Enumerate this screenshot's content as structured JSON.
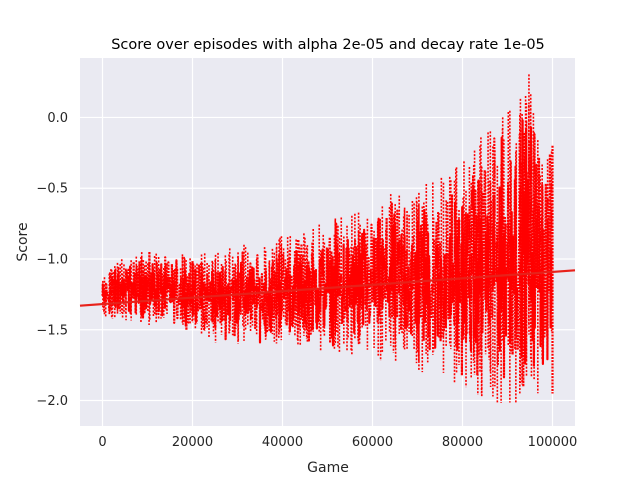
{
  "chart_data": {
    "type": "scatter",
    "title": "Score over episodes with alpha 2e-05 and decay rate 1e-05",
    "xlabel": "Game",
    "ylabel": "Score",
    "xlim": [
      -5000,
      105000
    ],
    "ylim": [
      -2.18,
      0.42
    ],
    "x_ticks": [
      0,
      20000,
      40000,
      60000,
      80000,
      100000
    ],
    "x_tick_labels": [
      "0",
      "20000",
      "40000",
      "60000",
      "80000",
      "100000"
    ],
    "y_ticks": [
      0.0,
      -0.5,
      -1.0,
      -1.5,
      -2.0
    ],
    "y_tick_labels": [
      "0.0",
      "−0.5",
      "−1.0",
      "−1.5",
      "−2.0"
    ],
    "grid": true,
    "style": "seaborn-darkgrid",
    "series": [
      {
        "color": "#ff0000",
        "marker": "dashed-points",
        "x_range": [
          0,
          100000
        ],
        "envelope": [
          {
            "x": 0,
            "low": -1.42,
            "high": -1.12
          },
          {
            "x": 5000,
            "low": -1.44,
            "high": -0.98
          },
          {
            "x": 10000,
            "low": -1.47,
            "high": -0.93
          },
          {
            "x": 15000,
            "low": -1.49,
            "high": -0.95
          },
          {
            "x": 20000,
            "low": -1.51,
            "high": -0.96
          },
          {
            "x": 25000,
            "low": -1.6,
            "high": -0.95
          },
          {
            "x": 30000,
            "low": -1.6,
            "high": -0.88
          },
          {
            "x": 35000,
            "low": -1.62,
            "high": -0.93
          },
          {
            "x": 40000,
            "low": -1.6,
            "high": -0.82
          },
          {
            "x": 45000,
            "low": -1.64,
            "high": -0.8
          },
          {
            "x": 50000,
            "low": -1.66,
            "high": -0.72
          },
          {
            "x": 55000,
            "low": -1.7,
            "high": -0.68
          },
          {
            "x": 60000,
            "low": -1.72,
            "high": -0.62
          },
          {
            "x": 65000,
            "low": -1.76,
            "high": -0.52
          },
          {
            "x": 70000,
            "low": -1.8,
            "high": -0.48
          },
          {
            "x": 75000,
            "low": -1.9,
            "high": -0.4
          },
          {
            "x": 80000,
            "low": -1.92,
            "high": -0.3
          },
          {
            "x": 85000,
            "low": -2.0,
            "high": -0.1
          },
          {
            "x": 90000,
            "low": -2.03,
            "high": 0.05
          },
          {
            "x": 95000,
            "low": -2.02,
            "high": 0.32
          },
          {
            "x": 100000,
            "low": -1.95,
            "high": -0.2
          }
        ]
      },
      {
        "type": "regression-line",
        "color": "#e8211a",
        "points": [
          {
            "x": -5000,
            "y": -1.33
          },
          {
            "x": 105000,
            "y": -1.08
          }
        ]
      }
    ]
  }
}
